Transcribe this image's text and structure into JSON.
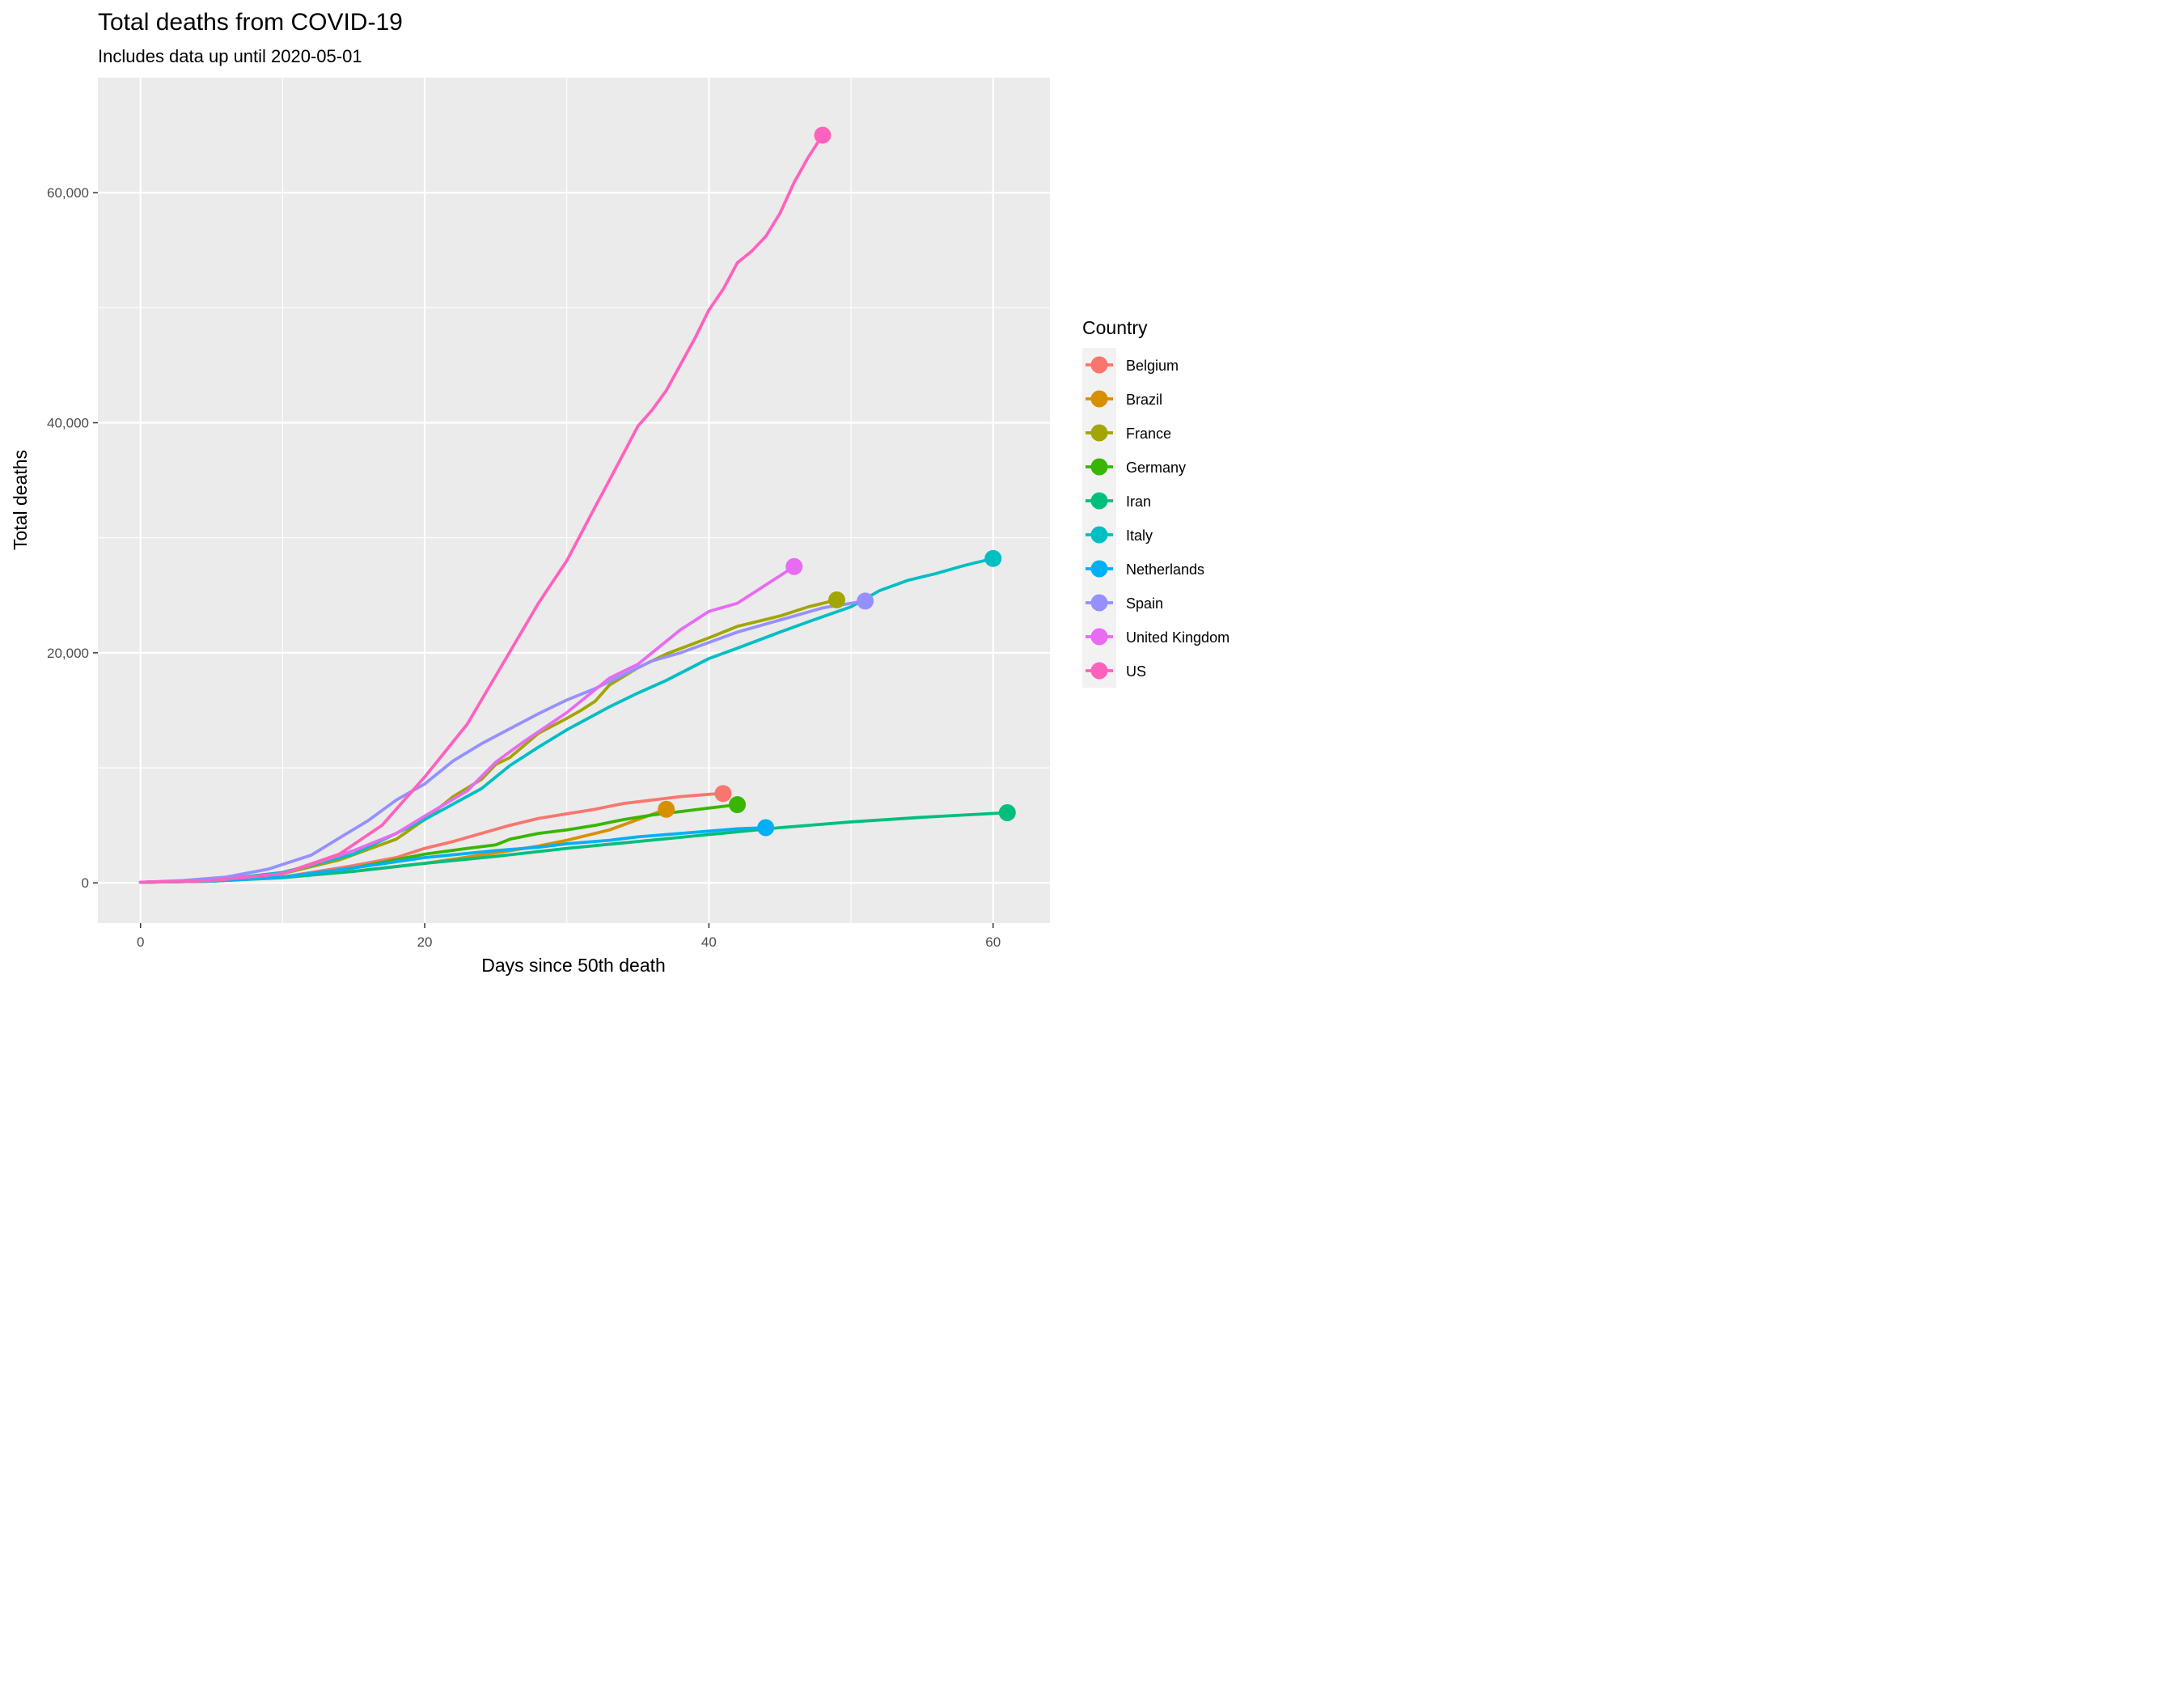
{
  "chart_data": {
    "type": "line",
    "title": "Total deaths from COVID-19",
    "subtitle": "Includes data up until 2020-05-01",
    "xlabel": "Days since 50th death",
    "ylabel": "Total deaths",
    "xlim": [
      -3,
      64
    ],
    "ylim": [
      -3500,
      70000
    ],
    "x_ticks": [
      0,
      20,
      40,
      60
    ],
    "y_ticks": [
      0,
      20000,
      40000,
      60000
    ],
    "x_tick_labels": [
      "0",
      "20",
      "40",
      "60"
    ],
    "y_tick_labels": [
      "0",
      "20,000",
      "40,000",
      "60,000"
    ],
    "grid": true,
    "legend": {
      "title": "Country",
      "position": "right"
    },
    "series": [
      {
        "name": "Belgium",
        "color": "#F8766D",
        "x": [
          0,
          5,
          10,
          15,
          18,
          20,
          22,
          24,
          26,
          28,
          30,
          32,
          34,
          36,
          38,
          40,
          41
        ],
        "y": [
          50,
          150,
          500,
          1500,
          2200,
          3000,
          3600,
          4300,
          5000,
          5600,
          6000,
          6400,
          6900,
          7200,
          7500,
          7700,
          7765
        ]
      },
      {
        "name": "Brazil",
        "color": "#D89000",
        "x": [
          0,
          5,
          10,
          15,
          20,
          25,
          28,
          30,
          33,
          35,
          37
        ],
        "y": [
          50,
          150,
          500,
          1000,
          1700,
          2600,
          3200,
          3700,
          4600,
          5500,
          6400
        ]
      },
      {
        "name": "France",
        "color": "#A3A500",
        "x": [
          0,
          5,
          10,
          14,
          16,
          18,
          20,
          22,
          24,
          25,
          26,
          28,
          30,
          31,
          32,
          33,
          35,
          37,
          40,
          42,
          45,
          47,
          49
        ],
        "y": [
          50,
          200,
          800,
          2000,
          2900,
          3800,
          5500,
          7500,
          9000,
          10300,
          10900,
          13000,
          14300,
          15000,
          15800,
          17200,
          18700,
          19900,
          21300,
          22300,
          23200,
          24000,
          24600
        ]
      },
      {
        "name": "Germany",
        "color": "#39B600",
        "x": [
          0,
          5,
          10,
          15,
          20,
          23,
          25,
          26,
          28,
          30,
          32,
          34,
          36,
          38,
          40,
          42
        ],
        "y": [
          50,
          150,
          500,
          1300,
          2500,
          3000,
          3300,
          3800,
          4300,
          4600,
          5000,
          5500,
          5900,
          6200,
          6500,
          6800
        ]
      },
      {
        "name": "Iran",
        "color": "#00BF7D",
        "x": [
          0,
          5,
          10,
          15,
          20,
          25,
          30,
          35,
          40,
          45,
          50,
          55,
          61
        ],
        "y": [
          50,
          150,
          450,
          1000,
          1700,
          2300,
          3000,
          3600,
          4200,
          4800,
          5300,
          5700,
          6100
        ]
      },
      {
        "name": "Italy",
        "color": "#00BFC4",
        "x": [
          0,
          5,
          10,
          15,
          20,
          24,
          26,
          28,
          30,
          33,
          35,
          37,
          40,
          42,
          45,
          47,
          50,
          52,
          54,
          56,
          58,
          60
        ],
        "y": [
          50,
          200,
          900,
          2500,
          5500,
          8200,
          10200,
          11800,
          13300,
          15300,
          16500,
          17600,
          19500,
          20400,
          21800,
          22700,
          24000,
          25400,
          26300,
          26900,
          27600,
          28200
        ]
      },
      {
        "name": "Netherlands",
        "color": "#00B0F6",
        "x": [
          0,
          5,
          10,
          15,
          20,
          25,
          28,
          30,
          33,
          35,
          38,
          40,
          42,
          44
        ],
        "y": [
          50,
          150,
          500,
          1300,
          2200,
          2800,
          3100,
          3400,
          3700,
          4000,
          4300,
          4500,
          4700,
          4800
        ]
      },
      {
        "name": "Spain",
        "color": "#9590FF",
        "x": [
          0,
          3,
          6,
          9,
          12,
          14,
          16,
          18,
          20,
          22,
          24,
          26,
          28,
          30,
          32,
          34,
          36,
          38,
          40,
          42,
          44,
          46,
          48,
          51
        ],
        "y": [
          50,
          200,
          500,
          1200,
          2400,
          3900,
          5400,
          7200,
          8600,
          10600,
          12100,
          13400,
          14700,
          15900,
          16900,
          18100,
          19300,
          20000,
          20900,
          21800,
          22500,
          23200,
          23900,
          24500
        ]
      },
      {
        "name": "United Kingdom",
        "color": "#E76BF3",
        "x": [
          0,
          5,
          10,
          15,
          18,
          20,
          23,
          25,
          27,
          30,
          33,
          35,
          36,
          38,
          39,
          40,
          42,
          44,
          46
        ],
        "y": [
          50,
          200,
          800,
          2800,
          4300,
          5800,
          8000,
          10500,
          12300,
          14800,
          17800,
          19000,
          20000,
          22000,
          22800,
          23600,
          24300,
          25900,
          27500
        ]
      },
      {
        "name": "US",
        "color": "#FF62BC",
        "x": [
          0,
          5,
          10,
          14,
          17,
          20,
          23,
          25,
          28,
          30,
          32,
          33,
          35,
          36,
          37,
          39,
          40,
          41,
          42,
          43,
          44,
          45,
          46,
          47,
          48
        ],
        "y": [
          50,
          200,
          800,
          2500,
          5000,
          9200,
          13800,
          18000,
          24300,
          28000,
          32700,
          35000,
          39700,
          41100,
          42800,
          47300,
          49800,
          51600,
          53900,
          54900,
          56200,
          58200,
          60900,
          63100,
          65000
        ]
      }
    ]
  }
}
